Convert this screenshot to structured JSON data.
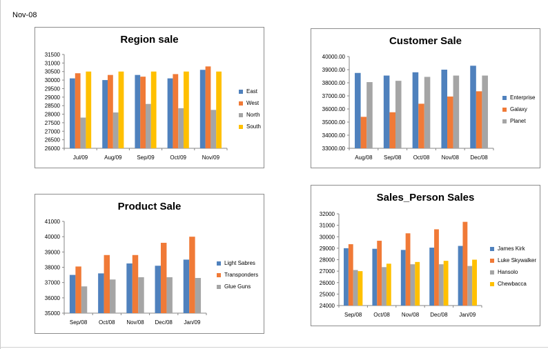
{
  "sheet": {
    "label": "Nov-08"
  },
  "chart_data": [
    {
      "id": "region",
      "type": "bar",
      "title": "Region sale",
      "categories": [
        "Jul/09",
        "Aug/09",
        "Sep/09",
        "Oct/09",
        "Nov/09"
      ],
      "ylim": [
        26000,
        31500
      ],
      "yticks": [
        26000,
        26500,
        27000,
        27500,
        28000,
        28500,
        29000,
        29500,
        30000,
        30500,
        31000,
        31500
      ],
      "ytick_labels": [
        "26000",
        "26500",
        "27000",
        "27500",
        "28000",
        "28500",
        "29000",
        "29500",
        "30000",
        "30500",
        "31000",
        "31500"
      ],
      "grid": false,
      "legend_position": "right",
      "series": [
        {
          "name": "East",
          "color": "#4f81bd",
          "values": [
            30100,
            30000,
            30300,
            30100,
            30600
          ]
        },
        {
          "name": "West",
          "color": "#f07a37",
          "values": [
            30400,
            30300,
            30200,
            30350,
            30800
          ]
        },
        {
          "name": "North",
          "color": "#a5a5a5",
          "values": [
            27800,
            28100,
            28600,
            28350,
            28250
          ]
        },
        {
          "name": "South",
          "color": "#ffc000",
          "values": [
            30500,
            30500,
            30500,
            30500,
            30500
          ]
        }
      ]
    },
    {
      "id": "customer",
      "type": "bar",
      "title": "Customer Sale",
      "categories": [
        "Aug/08",
        "Sep/08",
        "Oct/08",
        "Nov/08",
        "Dec/08"
      ],
      "ylim": [
        33000,
        40000
      ],
      "yticks": [
        33000,
        34000,
        35000,
        36000,
        37000,
        38000,
        39000,
        40000
      ],
      "ytick_labels": [
        "33000.00",
        "34000.00",
        "35000.00",
        "36000.00",
        "37000.00",
        "38000.00",
        "39000.00",
        "40000.00"
      ],
      "grid": false,
      "legend_position": "right",
      "series": [
        {
          "name": "Enterprise",
          "color": "#4f81bd",
          "values": [
            38750,
            38550,
            38800,
            39000,
            39300
          ]
        },
        {
          "name": "Galaxy",
          "color": "#f07a37",
          "values": [
            35400,
            35750,
            36400,
            36950,
            37350
          ]
        },
        {
          "name": "Planet",
          "color": "#a5a5a5",
          "values": [
            38050,
            38150,
            38450,
            38550,
            38550
          ]
        }
      ]
    },
    {
      "id": "product",
      "type": "bar",
      "title": "Product Sale",
      "categories": [
        "Sep/08",
        "Oct/08",
        "Nov/08",
        "Dec/08",
        "Jan/09"
      ],
      "ylim": [
        35000,
        41000
      ],
      "yticks": [
        35000,
        36000,
        37000,
        38000,
        39000,
        40000,
        41000
      ],
      "ytick_labels": [
        "35000",
        "36000",
        "37000",
        "38000",
        "39000",
        "40000",
        "41000"
      ],
      "grid": false,
      "legend_position": "right",
      "series": [
        {
          "name": "Light Sabres",
          "color": "#4f81bd",
          "values": [
            37500,
            37600,
            38250,
            38100,
            38500
          ]
        },
        {
          "name": "Transponders",
          "color": "#f07a37",
          "values": [
            38050,
            38800,
            38800,
            39600,
            40000
          ]
        },
        {
          "name": "Glue Guns",
          "color": "#a5a5a5",
          "values": [
            36750,
            37200,
            37350,
            37350,
            37300
          ]
        }
      ]
    },
    {
      "id": "salesperson",
      "type": "bar",
      "title": "Sales_Person Sales",
      "categories": [
        "Sep/08",
        "Oct/08",
        "Nov/08",
        "Dec/08",
        "Jan/09"
      ],
      "ylim": [
        24000,
        32000
      ],
      "yticks": [
        24000,
        25000,
        26000,
        27000,
        28000,
        29000,
        30000,
        31000,
        32000
      ],
      "ytick_labels": [
        "24000",
        "25000",
        "26000",
        "27000",
        "28000",
        "29000",
        "30000",
        "31000",
        "32000"
      ],
      "grid": false,
      "legend_position": "right",
      "series": [
        {
          "name": "James Kirk",
          "color": "#4f81bd",
          "values": [
            29000,
            28950,
            28850,
            29050,
            29200
          ]
        },
        {
          "name": "Luke Skywalker",
          "color": "#f07a37",
          "values": [
            29350,
            29650,
            30300,
            30650,
            31300
          ]
        },
        {
          "name": "Hansolo",
          "color": "#a5a5a5",
          "values": [
            27100,
            27350,
            27600,
            27600,
            27450
          ]
        },
        {
          "name": "Chewbacca",
          "color": "#ffc000",
          "values": [
            27000,
            27650,
            27800,
            27900,
            28000
          ]
        }
      ]
    }
  ]
}
